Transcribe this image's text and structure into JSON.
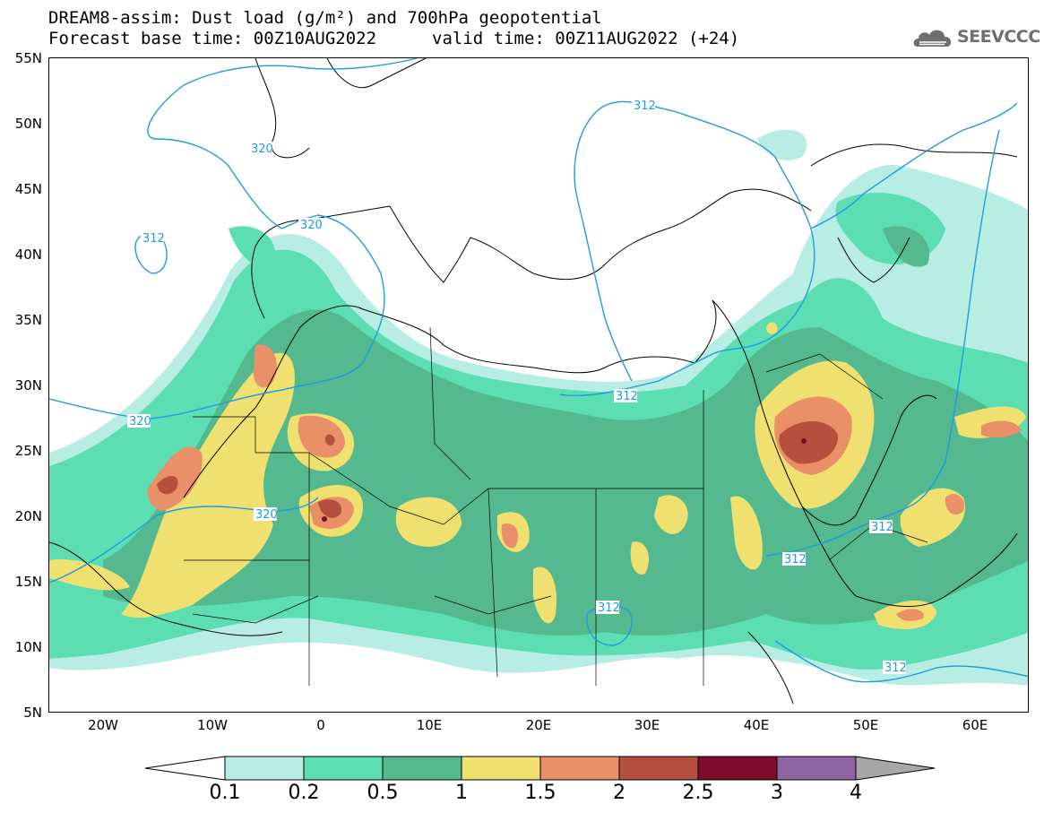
{
  "title": {
    "line1": "DREAM8-assim: Dust load (g/m²) and 700hPa geopotential",
    "line2a": "Forecast base time: 00Z10AUG2022",
    "line2b": "valid time: 00Z11AUG2022 (+24)"
  },
  "logo": {
    "text": "SEEVCCC",
    "icon": "cloud-icon"
  },
  "axes": {
    "lat_labels": [
      "55N",
      "50N",
      "45N",
      "40N",
      "35N",
      "30N",
      "25N",
      "20N",
      "15N",
      "10N",
      "5N"
    ],
    "lon_labels": [
      "20W",
      "10W",
      "0",
      "10E",
      "20E",
      "30E",
      "40E",
      "50E",
      "60E"
    ]
  },
  "contours": [
    {
      "label": "320",
      "color": "#1e9be6"
    },
    {
      "label": "320",
      "color": "#1e9be6"
    },
    {
      "label": "312",
      "color": "#1e9be6"
    },
    {
      "label": "320",
      "color": "#1e9be6"
    },
    {
      "label": "320",
      "color": "#1e9be6"
    },
    {
      "label": "312",
      "color": "#1e9be6"
    },
    {
      "label": "312",
      "color": "#1e9be6"
    },
    {
      "label": "312",
      "color": "#1e9be6"
    },
    {
      "label": "312",
      "color": "#1e9be6"
    },
    {
      "label": "312",
      "color": "#1e9be6"
    },
    {
      "label": "312",
      "color": "#1e9be6"
    }
  ],
  "colorbar": {
    "labels": [
      "0.1",
      "0.2",
      "0.5",
      "1",
      "1.5",
      "2",
      "2.5",
      "3",
      "4"
    ],
    "colors": [
      "#b7ede2",
      "#5cddb2",
      "#54b98e",
      "#f0e070",
      "#e99068",
      "#b54f3e",
      "#7c0b2c",
      "#8c66a2"
    ],
    "low_color": "#ffffff",
    "high_color": "#a8a8a8"
  }
}
